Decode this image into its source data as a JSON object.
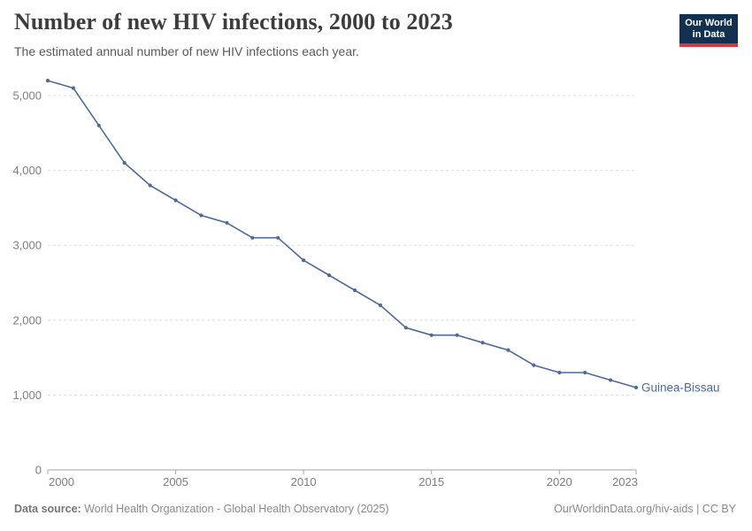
{
  "header": {
    "title": "Number of new HIV infections, 2000 to 2023",
    "subtitle": "The estimated annual number of new HIV infections each year.",
    "logo": {
      "line1": "Our World",
      "line2": "in Data"
    }
  },
  "chart_data": {
    "type": "line",
    "title": "Number of new HIV infections, 2000 to 2023",
    "xlabel": "",
    "ylabel": "",
    "xlim": [
      2000,
      2023
    ],
    "ylim": [
      0,
      5000
    ],
    "grid": "horizontal-dashed",
    "legend_position": "end-of-line-label",
    "x_ticks": [
      2000,
      2005,
      2010,
      2015,
      2020,
      2023
    ],
    "x_tick_labels": [
      "2000",
      "2005",
      "2010",
      "2015",
      "2020",
      "2023"
    ],
    "y_ticks": [
      0,
      1000,
      2000,
      3000,
      4000,
      5000
    ],
    "y_tick_labels": [
      "0",
      "1,000",
      "2,000",
      "3,000",
      "4,000",
      "5,000"
    ],
    "x": [
      2000,
      2001,
      2002,
      2003,
      2004,
      2005,
      2006,
      2007,
      2008,
      2009,
      2010,
      2011,
      2012,
      2013,
      2014,
      2015,
      2016,
      2017,
      2018,
      2019,
      2020,
      2021,
      2022,
      2023
    ],
    "series": [
      {
        "name": "Guinea-Bissau",
        "color": "#4c6a9c",
        "values": [
          5200,
          5100,
          4600,
          4100,
          3800,
          3600,
          3400,
          3300,
          3100,
          3100,
          2800,
          2600,
          2400,
          2200,
          1900,
          1800,
          1800,
          1700,
          1600,
          1400,
          1300,
          1300,
          1200,
          1100
        ]
      }
    ]
  },
  "footer": {
    "source_label": "Data source:",
    "source_text": " World Health Organization - Global Health Observatory (2025)",
    "link_text": "OurWorldinData.org/hiv-aids | CC BY"
  },
  "colors": {
    "accent": "#4c6a9c",
    "grid": "#dddddd",
    "axis": "#a5a5a5",
    "tick_text": "#7e7e7e",
    "title_text": "#3d3d3d",
    "subtitle_text": "#595959",
    "muted_text": "#8a8a8a",
    "logo_navy": "#12304f",
    "logo_red": "#d13b3b"
  }
}
